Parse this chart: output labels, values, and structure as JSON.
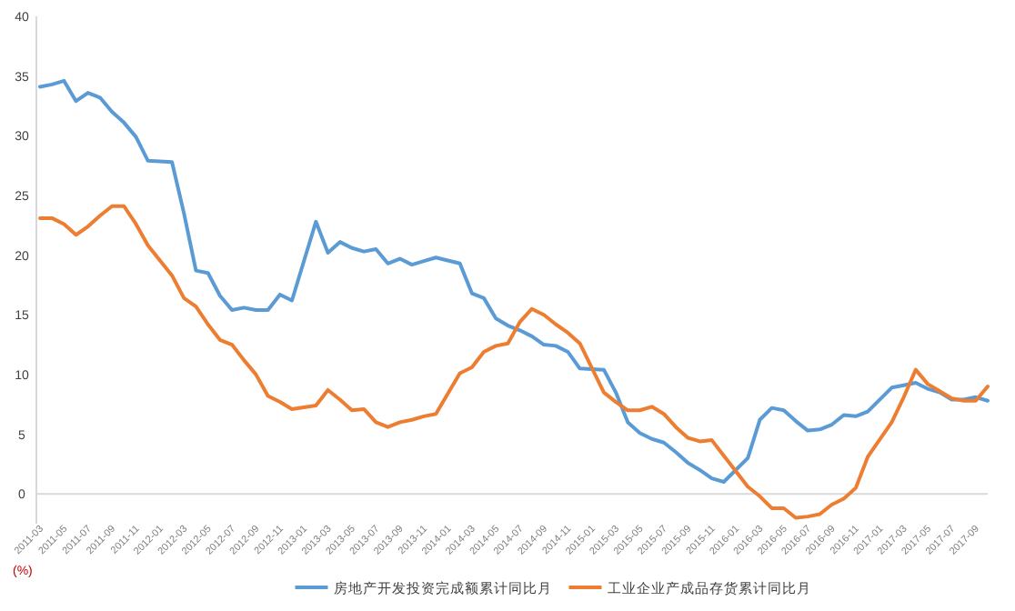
{
  "chart_data": {
    "type": "line",
    "categories": [
      "2011-03",
      null,
      "2011-05",
      null,
      "2011-07",
      null,
      "2011-09",
      null,
      "2011-11",
      null,
      "2012-01",
      null,
      "2012-03",
      null,
      "2012-05",
      null,
      "2012-07",
      null,
      "2012-09",
      null,
      "2012-11",
      null,
      "2013-01",
      null,
      "2013-03",
      null,
      "2013-05",
      null,
      "2013-07",
      null,
      "2013-09",
      null,
      "2013-11",
      null,
      "2014-01",
      null,
      "2014-03",
      null,
      "2014-05",
      null,
      "2014-07",
      null,
      "2014-09",
      null,
      "2014-11",
      null,
      "2015-01",
      null,
      "2015-03",
      null,
      "2015-05",
      null,
      "2015-07",
      null,
      "2015-09",
      null,
      "2015-11",
      null,
      "2016-01",
      null,
      "2016-03",
      null,
      "2016-05",
      null,
      "2016-07",
      null,
      "2016-09",
      null,
      "2016-11",
      null,
      "2017-01",
      null,
      "2017-03",
      null,
      "2017-05",
      null,
      "2017-07",
      null,
      "2017-09",
      null
    ],
    "series": [
      {
        "name": "房地产开发投资完成额累计同比月",
        "color": "#5b9bd5",
        "values": [
          34.1,
          34.3,
          34.6,
          32.9,
          33.6,
          33.2,
          32.0,
          31.1,
          29.9,
          27.9,
          null,
          27.8,
          23.5,
          18.7,
          18.5,
          16.6,
          15.4,
          15.6,
          15.4,
          15.4,
          16.7,
          16.2,
          null,
          22.8,
          20.2,
          21.1,
          20.6,
          20.3,
          20.5,
          19.3,
          19.7,
          19.2,
          19.5,
          19.8,
          null,
          19.3,
          16.8,
          16.4,
          14.7,
          14.1,
          13.7,
          13.2,
          12.5,
          12.4,
          11.9,
          10.5,
          null,
          10.4,
          8.5,
          6.0,
          5.1,
          4.6,
          4.3,
          3.5,
          2.6,
          2.0,
          1.3,
          1.0,
          null,
          3.0,
          6.2,
          7.2,
          7.0,
          6.1,
          5.3,
          5.4,
          5.8,
          6.6,
          6.5,
          6.9,
          null,
          8.9,
          9.1,
          9.3,
          8.8,
          8.5,
          7.9,
          7.9,
          8.1,
          7.8
        ]
      },
      {
        "name": "工业企业产成品存货累计同比月",
        "color": "#ed7d31",
        "values": [
          23.1,
          23.1,
          22.6,
          21.7,
          22.4,
          23.3,
          24.1,
          24.1,
          22.6,
          20.8,
          null,
          18.3,
          16.4,
          15.7,
          14.2,
          12.9,
          12.5,
          11.2,
          10.0,
          8.2,
          7.7,
          7.1,
          null,
          7.4,
          8.7,
          7.9,
          7.0,
          7.1,
          6.0,
          5.6,
          6.0,
          6.2,
          6.5,
          6.7,
          null,
          10.1,
          10.6,
          11.9,
          12.4,
          12.6,
          14.4,
          15.5,
          15.0,
          14.2,
          13.5,
          12.6,
          null,
          8.5,
          7.7,
          7.0,
          7.0,
          7.3,
          6.7,
          5.6,
          4.7,
          4.4,
          4.5,
          3.2,
          null,
          0.6,
          -0.2,
          -1.2,
          -1.2,
          -2.0,
          -1.9,
          -1.7,
          -0.9,
          -0.4,
          0.5,
          3.1,
          null,
          6.0,
          8.1,
          10.4,
          9.2,
          8.6,
          8.0,
          7.8,
          7.8,
          9.0
        ]
      }
    ],
    "ylim": [
      -2.5,
      40
    ],
    "yticks": [
      0,
      5,
      10,
      15,
      20,
      25,
      30,
      35,
      40
    ],
    "ref_lines": [
      {
        "axis": "y",
        "value": 0,
        "color": "#d9d9d9"
      }
    ],
    "legend": "bottom",
    "marker": "none",
    "line_style": "solid",
    "annotations": [
      "(%)"
    ]
  }
}
